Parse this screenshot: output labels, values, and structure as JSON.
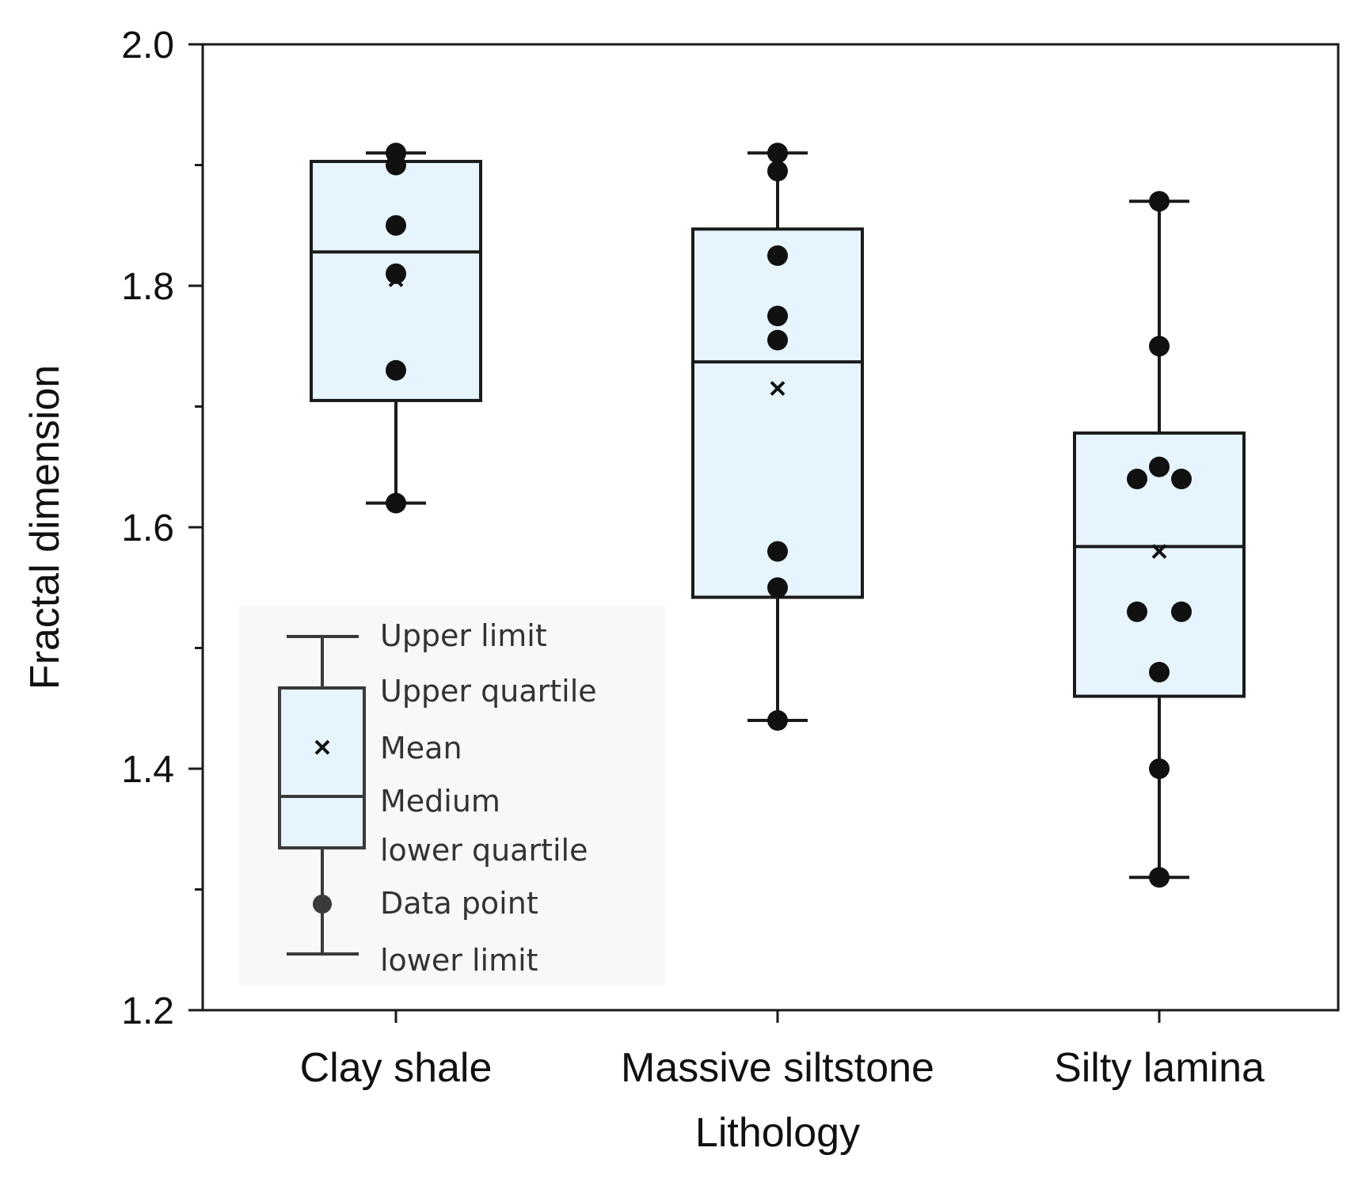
{
  "chart_data": {
    "type": "box",
    "title": "",
    "xlabel": "Lithology",
    "ylabel": "Fractal dimension",
    "ylim": [
      1.2,
      2.0
    ],
    "yticks": [
      "1.2",
      "1.4",
      "1.6",
      "1.8",
      "2.0"
    ],
    "minor_yticks": [
      1.3,
      1.5,
      1.7,
      1.9
    ],
    "categories": [
      "Clay shale",
      "Massive siltstone",
      "Silty lamina"
    ],
    "boxes": [
      {
        "category": "Clay shale",
        "lower_limit": 1.62,
        "lower_quartile": 1.705,
        "median": 1.828,
        "upper_quartile": 1.903,
        "upper_limit": 1.91,
        "mean": 1.805,
        "points": [
          1.91,
          1.9,
          1.85,
          1.81,
          1.73,
          1.62
        ]
      },
      {
        "category": "Massive siltstone",
        "lower_limit": 1.44,
        "lower_quartile": 1.542,
        "median": 1.737,
        "upper_quartile": 1.847,
        "upper_limit": 1.91,
        "mean": 1.715,
        "points": [
          1.91,
          1.895,
          1.825,
          1.775,
          1.755,
          1.58,
          1.55,
          1.44
        ]
      },
      {
        "category": "Silty lamina",
        "lower_limit": 1.31,
        "lower_quartile": 1.46,
        "median": 1.584,
        "upper_quartile": 1.678,
        "upper_limit": 1.87,
        "mean": 1.58,
        "points": [
          1.87,
          1.75,
          1.65,
          1.64,
          1.64,
          1.53,
          1.53,
          1.48,
          1.4,
          1.31
        ]
      }
    ],
    "legend": {
      "position": "bottom-left",
      "entries": [
        "Upper limit",
        "Upper quartile",
        "Mean",
        "Medium",
        "lower quartile",
        "Data point",
        "lower limit"
      ]
    },
    "colors": {
      "box_fill": "#e6f5fd",
      "stroke": "#1a1a1a",
      "legend_bg": "#f8f8f8",
      "legend_stroke": "#3a3a3a"
    }
  }
}
